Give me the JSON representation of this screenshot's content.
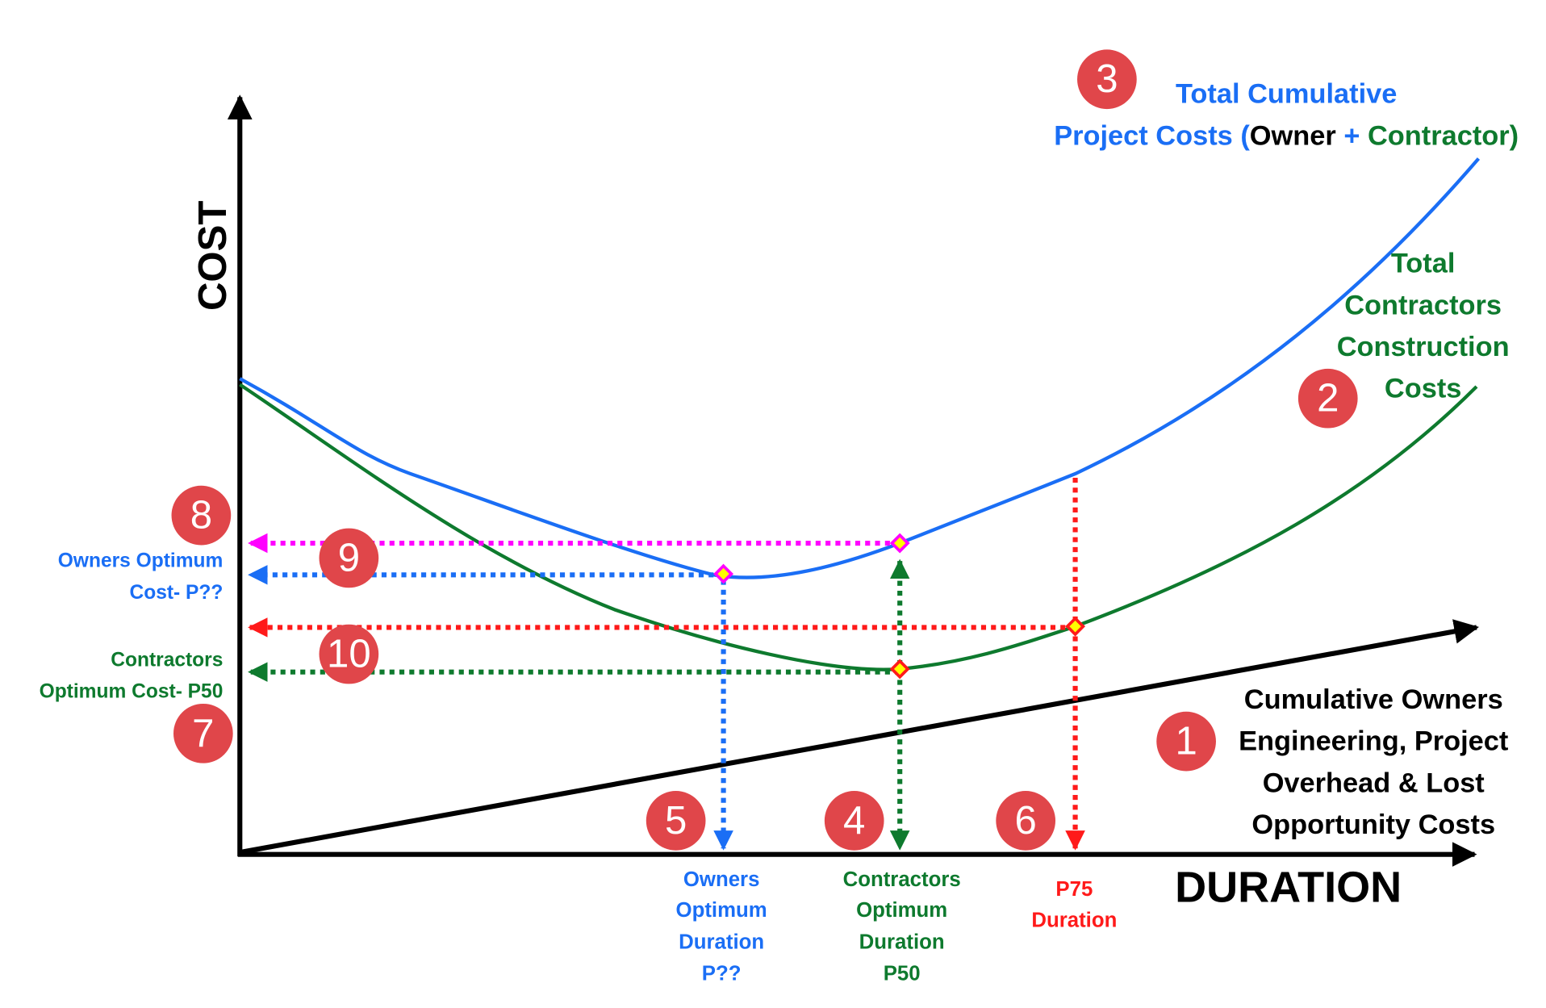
{
  "axes": {
    "y": "COST",
    "x": "DURATION"
  },
  "badges": [
    "1",
    "2",
    "3",
    "4",
    "5",
    "6",
    "7",
    "8",
    "9",
    "10"
  ],
  "curve_labels": {
    "total": [
      [
        "Total Cumulative"
      ],
      [
        "Project Costs (",
        "Owner",
        " + ",
        "Contractor)"
      ]
    ],
    "contractor": [
      "Total",
      "Contractors",
      "Construction",
      "Costs"
    ],
    "owner": [
      "Cumulative Owners",
      "Engineering, Project",
      "Overhead & Lost",
      "Opportunity Costs"
    ]
  },
  "cost_labels": {
    "owners": [
      "Owners Optimum",
      "Cost- P??"
    ],
    "contractors": [
      "Contractors",
      "Optimum Cost- P50"
    ]
  },
  "duration_labels": {
    "owners": [
      "Owners",
      "Optimum",
      "Duration",
      "P??"
    ],
    "contractors": [
      "Contractors",
      "Optimum",
      "Duration",
      "P50"
    ],
    "p75": [
      "P75",
      "Duration"
    ]
  }
}
